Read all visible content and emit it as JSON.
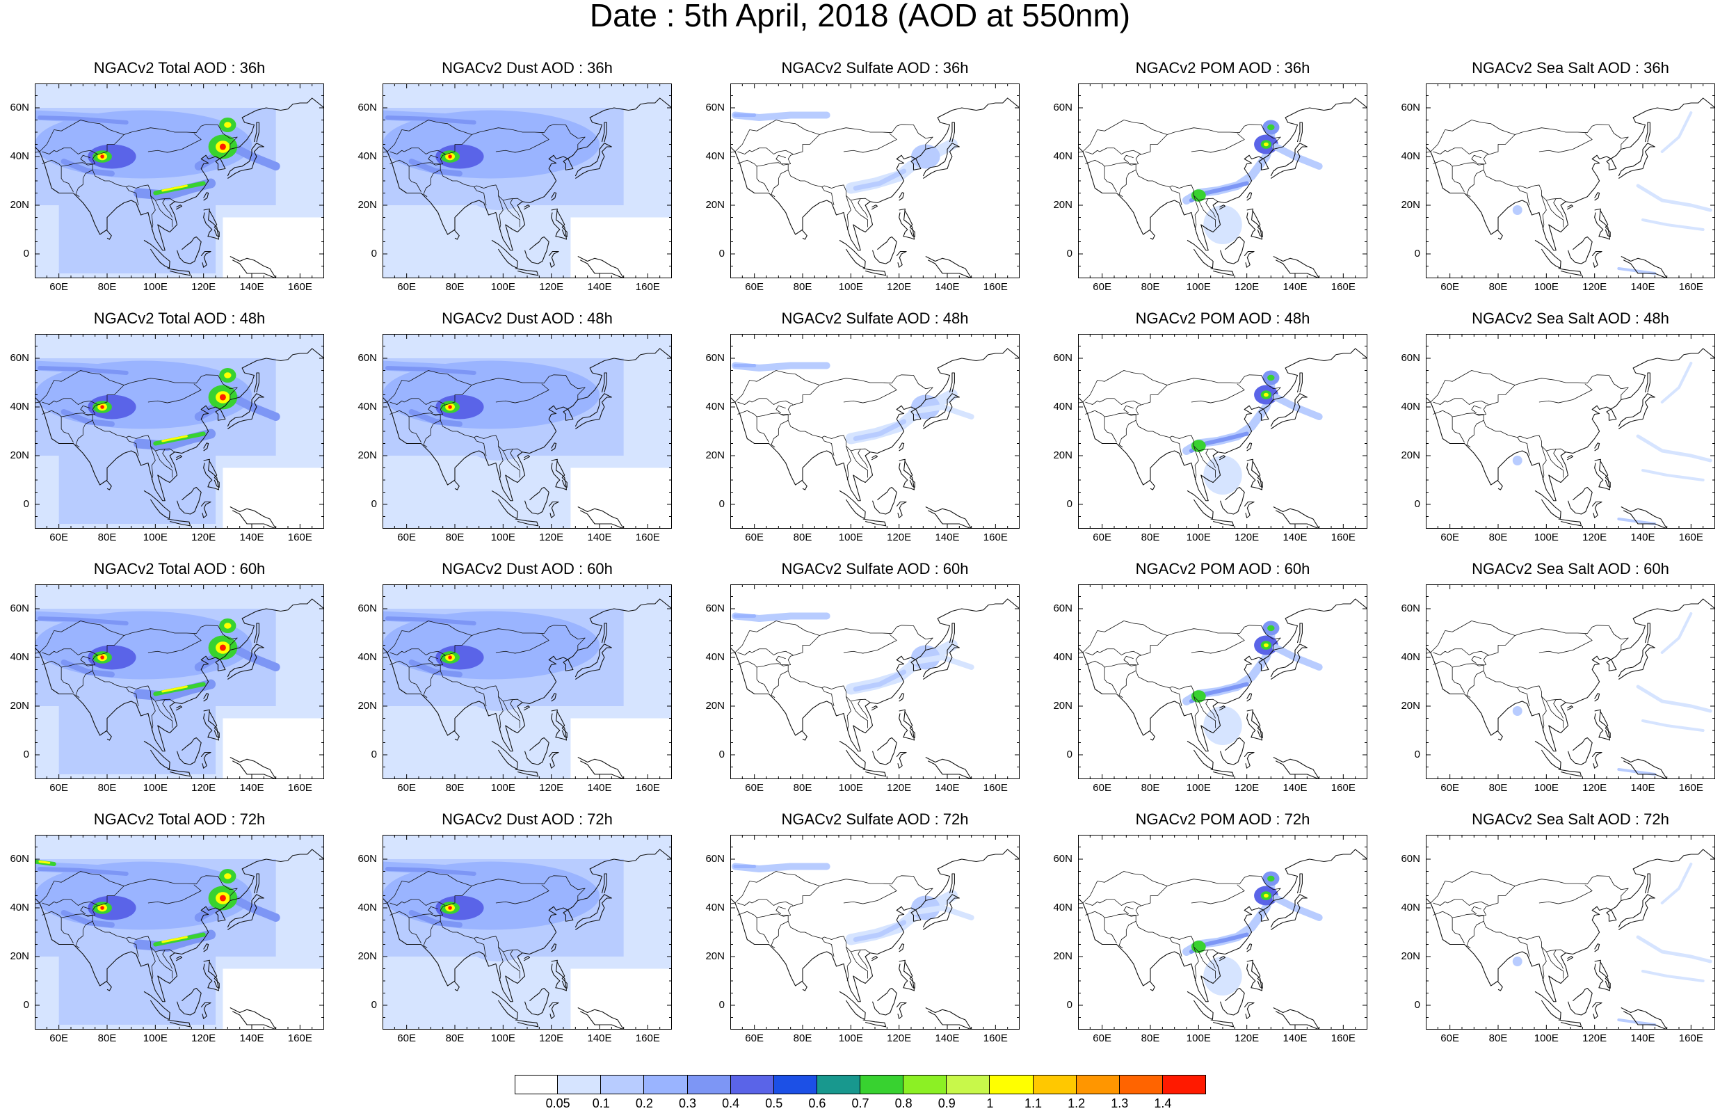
{
  "title": "Date : 5th April, 2018 (AOD at 550nm)",
  "lat_ticks": [
    "60N",
    "40N",
    "20N",
    "0"
  ],
  "lon_ticks": [
    "60E",
    "80E",
    "100E",
    "120E",
    "140E",
    "160E"
  ],
  "colorbar": {
    "labels": [
      "0.05",
      "0.1",
      "0.2",
      "0.3",
      "0.4",
      "0.5",
      "0.6",
      "0.7",
      "0.8",
      "0.9",
      "1",
      "1.1",
      "1.2",
      "1.3",
      "1.4"
    ],
    "colors": [
      "#ffffff",
      "#d6e4ff",
      "#b8ccff",
      "#9ab4ff",
      "#7d96f5",
      "#5a64e8",
      "#1c50e6",
      "#18988e",
      "#38d230",
      "#8cf024",
      "#c8f84a",
      "#ffff00",
      "#ffc800",
      "#ff9600",
      "#ff6400",
      "#ff1a00"
    ]
  },
  "panels": [
    {
      "title": "NGACv2 Total AOD : 36h",
      "species": "total"
    },
    {
      "title": "NGACv2 Dust AOD : 36h",
      "species": "dust"
    },
    {
      "title": "NGACv2 Sulfate AOD : 36h",
      "species": "sulfate"
    },
    {
      "title": "NGACv2 POM AOD : 36h",
      "species": "pom"
    },
    {
      "title": "NGACv2 Sea Salt AOD : 36h",
      "species": "seasalt"
    },
    {
      "title": "NGACv2 Total AOD : 48h",
      "species": "total"
    },
    {
      "title": "NGACv2 Dust AOD : 48h",
      "species": "dust"
    },
    {
      "title": "NGACv2 Sulfate AOD : 48h",
      "species": "sulfate"
    },
    {
      "title": "NGACv2 POM AOD : 48h",
      "species": "pom"
    },
    {
      "title": "NGACv2 Sea Salt AOD : 48h",
      "species": "seasalt"
    },
    {
      "title": "NGACv2 Total AOD : 60h",
      "species": "total"
    },
    {
      "title": "NGACv2 Dust AOD : 60h",
      "species": "dust"
    },
    {
      "title": "NGACv2 Sulfate AOD : 60h",
      "species": "sulfate"
    },
    {
      "title": "NGACv2 POM AOD : 60h",
      "species": "pom"
    },
    {
      "title": "NGACv2 Sea Salt AOD : 60h",
      "species": "seasalt"
    },
    {
      "title": "NGACv2 Total AOD : 72h",
      "species": "total"
    },
    {
      "title": "NGACv2 Dust AOD : 72h",
      "species": "dust"
    },
    {
      "title": "NGACv2 Sulfate AOD : 72h",
      "species": "sulfate"
    },
    {
      "title": "NGACv2 POM AOD : 72h",
      "species": "pom"
    },
    {
      "title": "NGACv2 Sea Salt  AOD : 72h",
      "species": "seasalt"
    }
  ]
}
